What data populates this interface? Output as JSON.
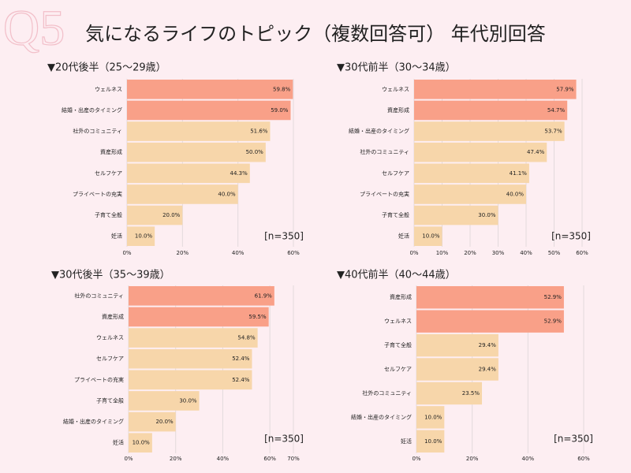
{
  "watermark": "Q5",
  "title": "気になるライフのトピック（複数回答可） 年代別回答",
  "chart_data": [
    {
      "type": "bar",
      "orientation": "horizontal",
      "title": "▼20代後半（25～29歳）",
      "categories": [
        "ウェルネス",
        "結婚・出産のタイミング",
        "社外のコミュニティ",
        "資産形成",
        "セルフケア",
        "プライベートの充実",
        "子育て全般",
        "妊活"
      ],
      "values": [
        59.8,
        59.0,
        51.6,
        50.0,
        44.3,
        40.0,
        20.0,
        10.0
      ],
      "value_labels": [
        "59.8%",
        "59.0%",
        "51.6%",
        "50.0%",
        "44.3%",
        "40.0%",
        "20.0%",
        "10.0%"
      ],
      "colors": [
        "#f9a088",
        "#f9a088",
        "#f7d6aa",
        "#f7d6aa",
        "#f7d6aa",
        "#f7d6aa",
        "#f7d6aa",
        "#f7d6aa"
      ],
      "xlim": [
        0,
        60
      ],
      "xticks": [
        {
          "value": 0,
          "label": "0%"
        },
        {
          "value": 20,
          "label": "20%"
        },
        {
          "value": 40,
          "label": "40%"
        },
        {
          "value": 60,
          "label": "60%"
        }
      ],
      "grid": true,
      "annotation": "[n=350]"
    },
    {
      "type": "bar",
      "orientation": "horizontal",
      "title": "▼30代前半（30～34歳）",
      "categories": [
        "ウェルネス",
        "資産形成",
        "結婚・出産のタイミング",
        "社外のコミュニティ",
        "セルフケア",
        "プライベートの充実",
        "子育て全般",
        "妊活"
      ],
      "values": [
        57.9,
        54.7,
        53.7,
        47.4,
        41.1,
        40.0,
        30.0,
        10.0
      ],
      "value_labels": [
        "57.9%",
        "54.7%",
        "53.7%",
        "47.4%",
        "41.1%",
        "40.0%",
        "30.0%",
        "10.0%"
      ],
      "colors": [
        "#f9a088",
        "#f9a088",
        "#f7d6aa",
        "#f7d6aa",
        "#f7d6aa",
        "#f7d6aa",
        "#f7d6aa",
        "#f7d6aa"
      ],
      "xlim": [
        0,
        60
      ],
      "xticks": [
        {
          "value": 0,
          "label": "0%"
        },
        {
          "value": 10,
          "label": "10%"
        },
        {
          "value": 20,
          "label": "20%"
        },
        {
          "value": 30,
          "label": "30%"
        },
        {
          "value": 40,
          "label": "40%"
        },
        {
          "value": 50,
          "label": "50%"
        },
        {
          "value": 60,
          "label": "60%"
        }
      ],
      "grid": true,
      "annotation": "[n=350]"
    },
    {
      "type": "bar",
      "orientation": "horizontal",
      "title": "▼30代後半（35～39歳）",
      "categories": [
        "社外のコミュニティ",
        "資産形成",
        "ウェルネス",
        "セルフケア",
        "プライベートの充実",
        "子育て全般",
        "結婚・出産のタイミング",
        "妊活"
      ],
      "values": [
        61.9,
        59.5,
        54.8,
        52.4,
        52.4,
        30.0,
        20.0,
        10.0
      ],
      "value_labels": [
        "61.9%",
        "59.5%",
        "54.8%",
        "52.4%",
        "52.4%",
        "30.0%",
        "20.0%",
        "10.0%"
      ],
      "colors": [
        "#f9a088",
        "#f9a088",
        "#f7d6aa",
        "#f7d6aa",
        "#f7d6aa",
        "#f7d6aa",
        "#f7d6aa",
        "#f7d6aa"
      ],
      "xlim": [
        0,
        70
      ],
      "xticks": [
        {
          "value": 0,
          "label": "0%"
        },
        {
          "value": 20,
          "label": "20%"
        },
        {
          "value": 40,
          "label": "40%"
        },
        {
          "value": 60,
          "label": "60%"
        },
        {
          "value": 70,
          "label": "70%"
        }
      ],
      "grid": true,
      "annotation": "[n=350]"
    },
    {
      "type": "bar",
      "orientation": "horizontal",
      "title": "▼40代前半（40～44歳）",
      "categories": [
        "資産形成",
        "ウェルネス",
        "子育て全般",
        "セルフケア",
        "社外のコミュニティ",
        "結婚・出産のタイミング",
        "妊活"
      ],
      "values": [
        52.9,
        52.9,
        29.4,
        29.4,
        23.5,
        10.0,
        10.0
      ],
      "value_labels": [
        "52.9%",
        "52.9%",
        "29.4%",
        "29.4%",
        "23.5%",
        "10.0%",
        "10.0%"
      ],
      "colors": [
        "#f9a088",
        "#f9a088",
        "#f7d6aa",
        "#f7d6aa",
        "#f7d6aa",
        "#f7d6aa",
        "#f7d6aa"
      ],
      "xlim": [
        0,
        60
      ],
      "xticks": [
        {
          "value": 0,
          "label": "0%"
        },
        {
          "value": 20,
          "label": "20%"
        },
        {
          "value": 40,
          "label": "40%"
        },
        {
          "value": 60,
          "label": "60%"
        }
      ],
      "grid": true,
      "annotation": "[n=350]"
    }
  ]
}
